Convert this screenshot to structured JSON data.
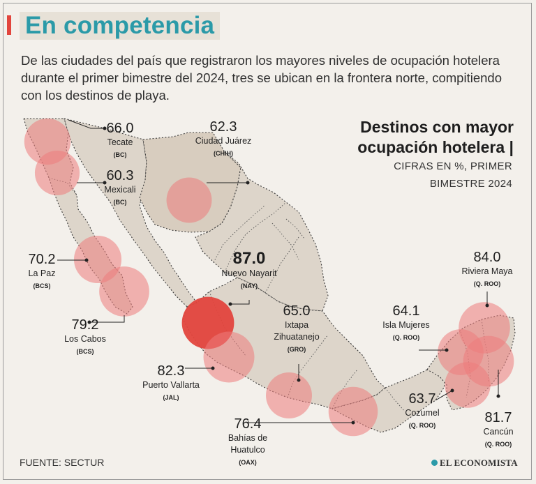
{
  "header": {
    "title": "En competencia",
    "intro": "De las ciudades del país que registraron los mayores niveles de ocupación hotelera durante el primer bimestre del 2024, tres se ubican en la frontera norte, compitiendo con los destinos de playa."
  },
  "legend": {
    "title_line1": "Destinos con mayor",
    "title_line2": "ocupación hotelera |",
    "subtitle_line1": "CIFRAS EN %, PRIMER",
    "subtitle_line2": "BIMESTRE 2024"
  },
  "footer": {
    "source": "FUENTE: SECTUR",
    "brand": "EL ECONOMISTA"
  },
  "colors": {
    "accent": "#2b9aa8",
    "highlight": "#e2453d",
    "bubble": "#ec7b7b",
    "land": "#ddd5ca"
  },
  "chart_data": {
    "type": "bubble-map",
    "title": "Destinos con mayor ocupación hotelera",
    "unit": "%",
    "period": "primer bimestre 2024",
    "points": [
      {
        "city": "Tecate",
        "state": "(BC)",
        "value": 66.0
      },
      {
        "city": "Mexicali",
        "state": "(BC)",
        "value": 60.3
      },
      {
        "city": "Ciudad Juárez",
        "state": "(CHIH)",
        "value": 62.3
      },
      {
        "city": "La Paz",
        "state": "(BCS)",
        "value": 70.2
      },
      {
        "city": "Los Cabos",
        "state": "(BCS)",
        "value": 79.2
      },
      {
        "city": "Nuevo Nayarit",
        "state": "(NAY)",
        "value": 87.0
      },
      {
        "city": "Puerto Vallarta",
        "state": "(JAL)",
        "value": 82.3
      },
      {
        "city": "Ixtapa Zihuatanejo",
        "state": "(GRO)",
        "value": 65.0
      },
      {
        "city": "Bahías de Huatulco",
        "state": "(OAX)",
        "value": 76.4
      },
      {
        "city": "Isla Mujeres",
        "state": "(Q. ROO)",
        "value": 64.1
      },
      {
        "city": "Riviera Maya",
        "state": "(Q. ROO)",
        "value": 84.0
      },
      {
        "city": "Cozumel",
        "state": "(Q. ROO)",
        "value": 63.7
      },
      {
        "city": "Cancún",
        "state": "(Q. ROO)",
        "value": 81.7
      }
    ]
  }
}
